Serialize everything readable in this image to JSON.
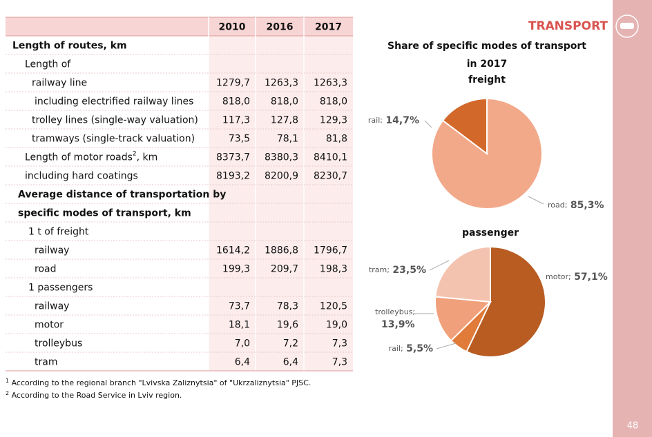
{
  "header": {
    "title": "TRANSPORT",
    "page_number": "48"
  },
  "table": {
    "columns": [
      "2010",
      "2016",
      "2017"
    ],
    "rows": [
      {
        "label": "Length of routes, km",
        "values": [
          "",
          "",
          ""
        ]
      },
      {
        "label": "Length of",
        "values": [
          "",
          "",
          ""
        ]
      },
      {
        "label": "railway line",
        "values": [
          "1279,7",
          "1263,3",
          "1263,3"
        ]
      },
      {
        "label": "including  electrified railway lines",
        "values": [
          "818,0",
          "818,0",
          "818,0"
        ]
      },
      {
        "label": "trolley lines (single-way valuation)",
        "values": [
          "117,3",
          "127,8",
          "129,3"
        ]
      },
      {
        "label": "tramways (single-track valuation)",
        "values": [
          "73,5",
          "78,1",
          "81,8"
        ]
      },
      {
        "label": "Length of motor roads",
        "sup": "2",
        "label_rest": ", km",
        "values": [
          "8373,7",
          "8380,3",
          "8410,1"
        ]
      },
      {
        "label": "including hard coatings",
        "values": [
          "8193,2",
          "8200,9",
          "8230,7"
        ]
      },
      {
        "label": "Average distance of transportation by",
        "values": [
          "",
          "",
          ""
        ]
      },
      {
        "label": "specific modes of transport, km",
        "values": [
          "",
          "",
          ""
        ]
      },
      {
        "label": "1 t of freight",
        "values": [
          "",
          "",
          ""
        ]
      },
      {
        "label": "railway",
        "values": [
          "1614,2",
          "1886,8",
          "1796,7"
        ]
      },
      {
        "label": "road",
        "values": [
          "199,3",
          "209,7",
          "198,3"
        ]
      },
      {
        "label": "1 passengers",
        "values": [
          "",
          "",
          ""
        ]
      },
      {
        "label": "railway",
        "values": [
          "73,7",
          "78,3",
          "120,5"
        ]
      },
      {
        "label": "motor",
        "values": [
          "18,1",
          "19,6",
          "19,0"
        ]
      },
      {
        "label": "trolleybus",
        "values": [
          "7,0",
          "7,2",
          "7,3"
        ]
      },
      {
        "label": "tram",
        "values": [
          "6,4",
          "6,4",
          "7,3"
        ]
      }
    ]
  },
  "footnotes": [
    {
      "mark": "1",
      "text": " According to the regional branch \"Lvivska Zaliznytsia\" of \"Ukrzaliznytsia\" PJSC."
    },
    {
      "mark": "2",
      "text": " According to the Road Service in Lviv region."
    }
  ],
  "charts_title": [
    "Share of specific modes of transport",
    "in 2017"
  ],
  "chart_data": [
    {
      "type": "pie",
      "title": "freight",
      "categories": [
        "road;",
        "rail;"
      ],
      "values": [
        85.3,
        14.7
      ],
      "value_labels": [
        "85,3%",
        "14,7%"
      ],
      "colors": [
        "#f2a98a",
        "#d2692a"
      ]
    },
    {
      "type": "pie",
      "title": "passenger",
      "categories": [
        "motor;",
        "rail;",
        "trolleybus;",
        "tram;"
      ],
      "values": [
        57.1,
        5.5,
        13.9,
        23.5
      ],
      "value_labels": [
        "57,1%",
        "5,5%",
        "13,9%",
        "23,5%"
      ],
      "colors": [
        "#b85c22",
        "#e07b3a",
        "#f0a07a",
        "#f4c3b0"
      ]
    }
  ]
}
